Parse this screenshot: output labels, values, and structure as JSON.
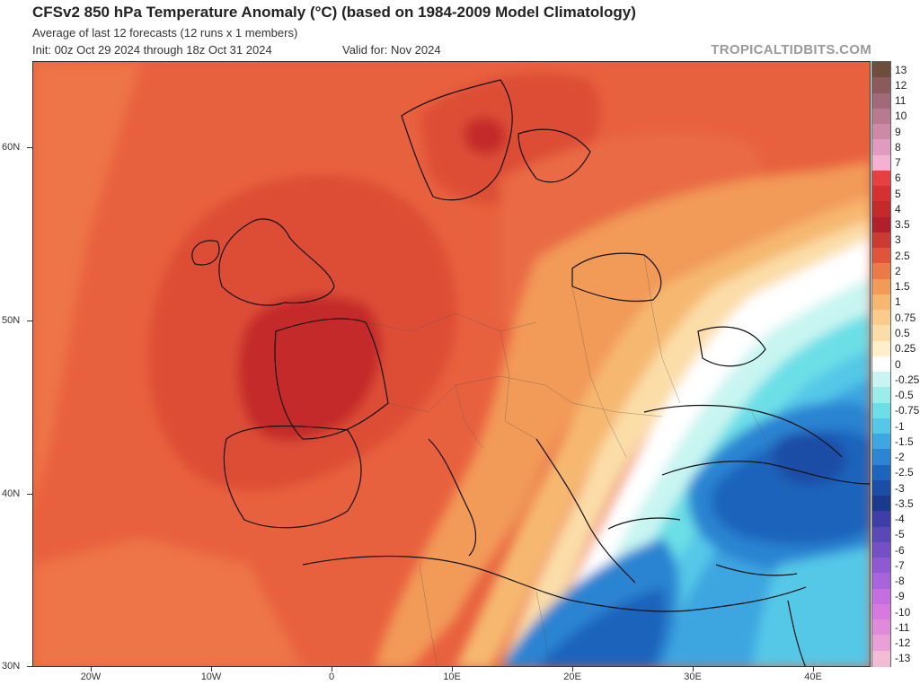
{
  "header": {
    "title": "CFSv2 850 hPa Temperature Anomaly (°C) (based on 1984-2009 Model Climatology)",
    "subtitle": "Average of last 12 forecasts (12 runs x 1 members)",
    "init": "Init: 00z Oct 29 2024 through 18z Oct 31 2024",
    "valid": "Valid for: Nov 2024",
    "watermark": "TROPICALTIDBITS.COM"
  },
  "map": {
    "projection": "equirectangular",
    "lon_range": [
      -25,
      45.5
    ],
    "lat_range": [
      30,
      64.5
    ],
    "lat_ticks": [
      "60N",
      "50N",
      "40N",
      "30N"
    ],
    "lon_ticks": [
      "20W",
      "10W",
      "0",
      "10E",
      "20E",
      "30E",
      "40E"
    ],
    "region": "Europe, North Africa and the Middle East",
    "pattern": "Warm anomalies (up to +3.5) over western Europe and the North Atlantic; cold anomalies (down to -3.5) over Turkey, the Black Sea and the eastern Mediterranean"
  },
  "colorbar": {
    "labels": [
      "13",
      "12",
      "11",
      "10",
      "9",
      "8",
      "7",
      "6",
      "5",
      "4",
      "3.5",
      "3",
      "2.5",
      "2",
      "1.5",
      "1",
      "0.75",
      "0.5",
      "0.25",
      "0",
      "-0.25",
      "-0.5",
      "-0.75",
      "-1",
      "-1.5",
      "-2",
      "-2.5",
      "-3",
      "-3.5",
      "-4",
      "-5",
      "-6",
      "-7",
      "-8",
      "-9",
      "-10",
      "-11",
      "-12",
      "-13"
    ],
    "colors": [
      "#6e4d3c",
      "#8b5a5a",
      "#a06a7a",
      "#b87a90",
      "#cc8aa6",
      "#e09cc0",
      "#f2b2d0",
      "#e64040",
      "#d73030",
      "#c42a2a",
      "#b0202a",
      "#cc3b30",
      "#e0553a",
      "#ec7a48",
      "#f29a58",
      "#f6b870",
      "#f9cc8c",
      "#fbdda8",
      "#fdefca",
      "#ffffff",
      "#c8f5f2",
      "#9ceceb",
      "#6cdfe6",
      "#55c8e8",
      "#3ea6e0",
      "#2c84d2",
      "#1c64bc",
      "#1b4ea6",
      "#1a3a8e",
      "#3d3ea8",
      "#5a47b8",
      "#7450c6",
      "#8e5ad2",
      "#a864dc",
      "#c46ee2",
      "#d67ae0",
      "#e08ada",
      "#e8a0d6",
      "#f2bcd4"
    ]
  }
}
